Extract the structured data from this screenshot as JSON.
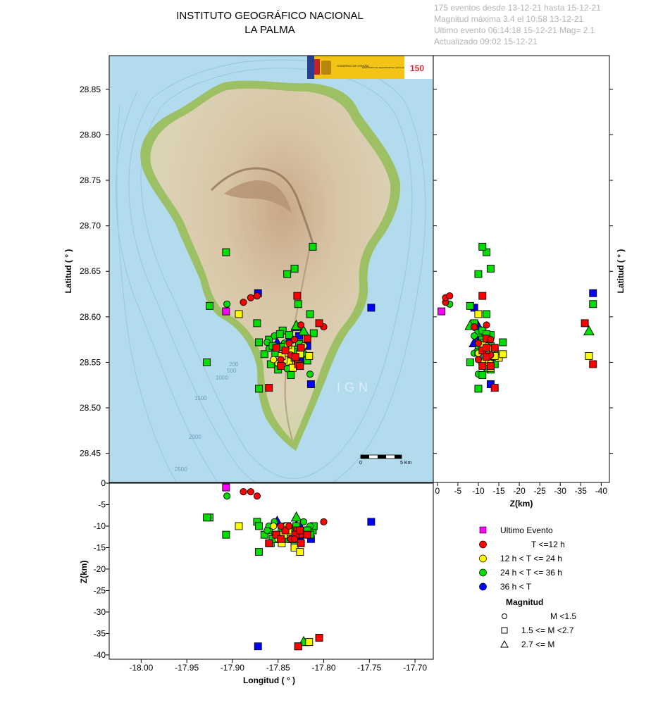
{
  "header": {
    "title_line1": "INSTITUTO GEOGRÁFICO NACIONAL",
    "title_line2": "LA PALMA",
    "info": [
      "175 eventos desde 13-12-21 hasta 15-12-21",
      "Magnitud máxima 3.4 el 10:58 13-12-21",
      "Ultimo evento   06:14:18 15-12-21  Mag= 2.1",
      "Actualizado  09:02  15-12-21"
    ]
  },
  "colors": {
    "ultimo": "#ff00ff",
    "t12": "#ff0000",
    "t24": "#ffff00",
    "t36": "#00dd00",
    "t48": "#0000ff",
    "sea": "#b3dbee",
    "land": "#d9c9a4",
    "coast": "#9cc063",
    "caldera": "#a9825e"
  },
  "map": {
    "bathymetry_labels": [
      "200",
      "500",
      "1000",
      "1500",
      "2000",
      "2500"
    ],
    "watermark": "IGN",
    "scalebar_labels": [
      "0",
      "5 Km"
    ],
    "logo_text": [
      "GOBIERNO DE ESPAÑA",
      "MINISTERIO DE TRANSPORTES, MOVILIDAD Y AGENDA URBANA",
      "150"
    ]
  },
  "legend": {
    "items": [
      {
        "key": "ultimo",
        "label": "Ultimo Evento"
      },
      {
        "key": "t12",
        "label": "T <=12 h"
      },
      {
        "key": "t24",
        "label": "12 h  < T <= 24 h"
      },
      {
        "key": "t36",
        "label": "24 h  < T <= 36 h"
      },
      {
        "key": "t48",
        "label": "36 h <  T"
      }
    ],
    "magnitude_title": "Magnitud",
    "magnitude_items": [
      {
        "shape": "circle",
        "label": "M <1.5"
      },
      {
        "shape": "square",
        "label": "1.5 <= M <2.7"
      },
      {
        "shape": "triangle",
        "label": "2.7 <= M"
      }
    ]
  },
  "chart_data": {
    "type": "scatter",
    "map_panel": {
      "xlabel": "",
      "ylabel": "Latitud ( ° )",
      "xlim": [
        -18.035,
        -17.68
      ],
      "ylim": [
        28.418,
        28.887
      ],
      "yticks": [
        "28.45",
        "28.50",
        "28.55",
        "28.60",
        "28.65",
        "28.70",
        "28.75",
        "28.80",
        "28.85"
      ]
    },
    "depth_lat_panel": {
      "xlabel": "Z(km)",
      "ylabel": "Latitud ( ° )",
      "xlim": [
        1,
        -42
      ],
      "xticks": [
        "0",
        "-5",
        "-10",
        "-15",
        "-20",
        "-25",
        "-30",
        "-35",
        "-40"
      ]
    },
    "lon_depth_panel": {
      "xlabel": "Longitud ( ° )",
      "ylabel": "Z(km)",
      "ylim": [
        -41,
        0
      ],
      "xticks": [
        "-18.00",
        "-17.95",
        "-17.90",
        "-17.85",
        "-17.80",
        "-17.75",
        "-17.70"
      ],
      "yticks": [
        "0",
        "-5",
        "-10",
        "-15",
        "-20",
        "-25",
        "-30",
        "-35",
        "-40"
      ]
    },
    "series": [
      {
        "name": "Ultimo Evento",
        "key": "ultimo",
        "points": [
          {
            "lon": -17.907,
            "lat": 28.606,
            "z": -1,
            "m": "square"
          }
        ]
      },
      {
        "name": "T <=12 h",
        "key": "t12",
        "points": [
          {
            "lon": -17.888,
            "lat": 28.616,
            "z": -2,
            "m": "circle"
          },
          {
            "lon": -17.88,
            "lat": 28.621,
            "z": -2,
            "m": "circle"
          },
          {
            "lon": -17.873,
            "lat": 28.623,
            "z": -3,
            "m": "circle"
          },
          {
            "lon": -17.829,
            "lat": 28.623,
            "z": -11,
            "m": "square"
          },
          {
            "lon": -17.8,
            "lat": 28.589,
            "z": -9,
            "m": "circle"
          },
          {
            "lon": -17.805,
            "lat": 28.593,
            "z": -36,
            "m": "square"
          },
          {
            "lon": -17.825,
            "lat": 28.591,
            "z": -12,
            "m": "circle"
          },
          {
            "lon": -17.818,
            "lat": 28.576,
            "z": -12,
            "m": "square"
          },
          {
            "lon": -17.842,
            "lat": 28.563,
            "z": -11,
            "m": "square"
          },
          {
            "lon": -17.836,
            "lat": 28.558,
            "z": -13,
            "m": "circle"
          },
          {
            "lon": -17.831,
            "lat": 28.556,
            "z": -12,
            "m": "square"
          },
          {
            "lon": -17.847,
            "lat": 28.553,
            "z": -10,
            "m": "circle"
          },
          {
            "lon": -17.852,
            "lat": 28.566,
            "z": -12,
            "m": "square"
          },
          {
            "lon": -17.828,
            "lat": 28.548,
            "z": -38,
            "m": "square"
          },
          {
            "lon": -17.825,
            "lat": 28.566,
            "z": -14,
            "m": "square"
          },
          {
            "lon": -17.838,
            "lat": 28.571,
            "z": -10,
            "m": "circle"
          },
          {
            "lon": -17.847,
            "lat": 28.546,
            "z": -13,
            "m": "square"
          },
          {
            "lon": -17.832,
            "lat": 28.575,
            "z": -13,
            "m": "circle"
          },
          {
            "lon": -17.86,
            "lat": 28.522,
            "z": -14,
            "m": "square"
          },
          {
            "lon": -17.826,
            "lat": 28.546,
            "z": -11,
            "m": "square"
          }
        ]
      },
      {
        "name": "12 h  < T <= 24 h",
        "key": "t24",
        "points": [
          {
            "lon": -17.893,
            "lat": 28.603,
            "z": -10,
            "m": "square"
          },
          {
            "lon": -17.838,
            "lat": 28.551,
            "z": -12,
            "m": "square"
          },
          {
            "lon": -17.844,
            "lat": 28.553,
            "z": -12,
            "m": "square"
          },
          {
            "lon": -17.832,
            "lat": 28.555,
            "z": -15,
            "m": "square"
          },
          {
            "lon": -17.826,
            "lat": 28.559,
            "z": -16,
            "m": "square"
          },
          {
            "lon": -17.816,
            "lat": 28.557,
            "z": -37,
            "m": "square"
          },
          {
            "lon": -17.85,
            "lat": 28.549,
            "z": -13,
            "m": "circle"
          },
          {
            "lon": -17.841,
            "lat": 28.56,
            "z": -10,
            "m": "circle"
          },
          {
            "lon": -17.836,
            "lat": 28.564,
            "z": -13,
            "m": "square"
          },
          {
            "lon": -17.829,
            "lat": 28.55,
            "z": -11,
            "m": "circle"
          },
          {
            "lon": -17.822,
            "lat": 28.568,
            "z": -12,
            "m": "circle"
          },
          {
            "lon": -17.846,
            "lat": 28.557,
            "z": -14,
            "m": "square"
          },
          {
            "lon": -17.855,
            "lat": 28.553,
            "z": -10,
            "m": "circle"
          },
          {
            "lon": -17.834,
            "lat": 28.544,
            "z": -13,
            "m": "square"
          },
          {
            "lon": -17.839,
            "lat": 28.569,
            "z": -11,
            "m": "square"
          }
        ]
      },
      {
        "name": "24 h  < T <= 36 h",
        "key": "t36",
        "points": [
          {
            "lon": -17.907,
            "lat": 28.671,
            "z": -12,
            "m": "square"
          },
          {
            "lon": -17.812,
            "lat": 28.677,
            "z": -11,
            "m": "square"
          },
          {
            "lon": -17.832,
            "lat": 28.653,
            "z": -13,
            "m": "square"
          },
          {
            "lon": -17.84,
            "lat": 28.647,
            "z": -10,
            "m": "square"
          },
          {
            "lon": -17.828,
            "lat": 28.614,
            "z": -38,
            "m": "square"
          },
          {
            "lon": -17.925,
            "lat": 28.612,
            "z": -8,
            "m": "square"
          },
          {
            "lon": -17.906,
            "lat": 28.614,
            "z": -3,
            "m": "circle"
          },
          {
            "lon": -17.815,
            "lat": 28.603,
            "z": -12,
            "m": "square"
          },
          {
            "lon": -17.873,
            "lat": 28.593,
            "z": -9,
            "m": "square"
          },
          {
            "lon": -17.811,
            "lat": 28.582,
            "z": -10,
            "m": "square"
          },
          {
            "lon": -17.871,
            "lat": 28.572,
            "z": -16,
            "m": "square"
          },
          {
            "lon": -17.928,
            "lat": 28.55,
            "z": -8,
            "m": "square"
          },
          {
            "lon": -17.871,
            "lat": 28.521,
            "z": -10,
            "m": "square"
          },
          {
            "lon": -17.815,
            "lat": 28.537,
            "z": -10,
            "m": "circle"
          },
          {
            "lon": -17.86,
            "lat": 28.575,
            "z": -11,
            "m": "square"
          },
          {
            "lon": -17.854,
            "lat": 28.579,
            "z": -9,
            "m": "circle"
          },
          {
            "lon": -17.845,
            "lat": 28.585,
            "z": -11,
            "m": "square"
          },
          {
            "lon": -17.838,
            "lat": 28.58,
            "z": -13,
            "m": "square"
          },
          {
            "lon": -17.83,
            "lat": 28.59,
            "z": -8,
            "m": "triangle"
          },
          {
            "lon": -17.822,
            "lat": 28.584,
            "z": -37,
            "m": "triangle"
          },
          {
            "lon": -17.865,
            "lat": 28.559,
            "z": -12,
            "m": "square"
          },
          {
            "lon": -17.858,
            "lat": 28.548,
            "z": -14,
            "m": "square"
          },
          {
            "lon": -17.85,
            "lat": 28.542,
            "z": -13,
            "m": "square"
          },
          {
            "lon": -17.843,
            "lat": 28.571,
            "z": -10,
            "m": "circle"
          },
          {
            "lon": -17.836,
            "lat": 28.536,
            "z": -11,
            "m": "square"
          },
          {
            "lon": -17.827,
            "lat": 28.57,
            "z": -12,
            "m": "square"
          },
          {
            "lon": -17.822,
            "lat": 28.56,
            "z": -9,
            "m": "circle"
          },
          {
            "lon": -17.818,
            "lat": 28.552,
            "z": -11,
            "m": "square"
          },
          {
            "lon": -17.86,
            "lat": 28.565,
            "z": -10,
            "m": "circle"
          },
          {
            "lon": -17.853,
            "lat": 28.56,
            "z": -12,
            "m": "square"
          },
          {
            "lon": -17.846,
            "lat": 28.567,
            "z": -11,
            "m": "square"
          },
          {
            "lon": -17.84,
            "lat": 28.543,
            "z": -12,
            "m": "circle"
          },
          {
            "lon": -17.832,
            "lat": 28.564,
            "z": -14,
            "m": "square"
          },
          {
            "lon": -17.862,
            "lat": 28.572,
            "z": -11,
            "m": "circle"
          },
          {
            "lon": -17.83,
            "lat": 28.561,
            "z": -10,
            "m": "square"
          },
          {
            "lon": -17.848,
            "lat": 28.581,
            "z": -12,
            "m": "square"
          },
          {
            "lon": -17.856,
            "lat": 28.568,
            "z": -13,
            "m": "square"
          }
        ]
      },
      {
        "name": "36 h <  T",
        "key": "t48",
        "points": [
          {
            "lon": -17.872,
            "lat": 28.626,
            "z": -38,
            "m": "square"
          },
          {
            "lon": -17.748,
            "lat": 28.61,
            "z": -9,
            "m": "square"
          },
          {
            "lon": -17.814,
            "lat": 28.526,
            "z": -13,
            "m": "square"
          },
          {
            "lon": -17.818,
            "lat": 28.568,
            "z": -11,
            "m": "square"
          },
          {
            "lon": -17.851,
            "lat": 28.571,
            "z": -9,
            "m": "triangle"
          },
          {
            "lon": -17.827,
            "lat": 28.579,
            "z": -10,
            "m": "square"
          },
          {
            "lon": -17.837,
            "lat": 28.575,
            "z": -12,
            "m": "square"
          },
          {
            "lon": -17.83,
            "lat": 28.589,
            "z": -10,
            "m": "triangle"
          },
          {
            "lon": -17.845,
            "lat": 28.567,
            "z": -12,
            "m": "square"
          },
          {
            "lon": -17.826,
            "lat": 28.553,
            "z": -13,
            "m": "square"
          }
        ]
      }
    ]
  }
}
